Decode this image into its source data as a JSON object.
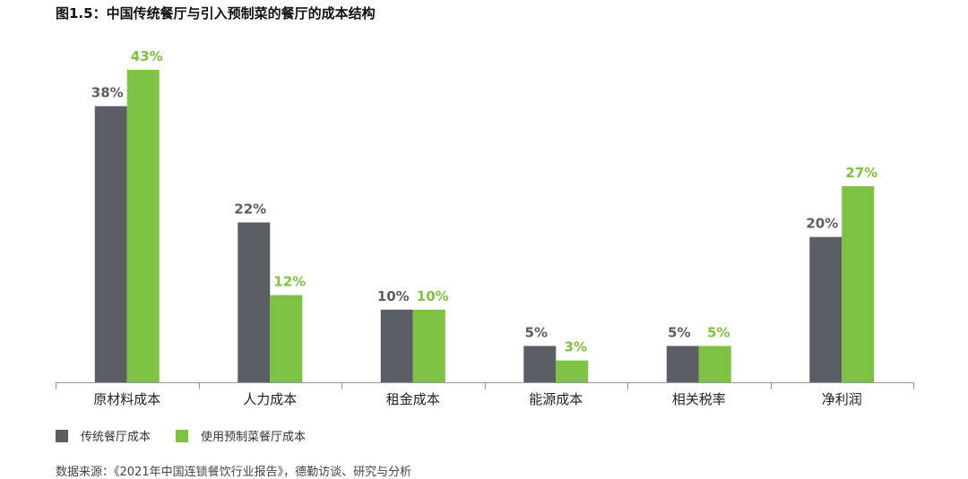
{
  "chart_data": {
    "type": "bar",
    "title": "图1.5：中国传统餐厅与引入预制菜的餐厅的成本结构",
    "categories": [
      "原材料成本",
      "人力成本",
      "租金成本",
      "能源成本",
      "相关税率",
      "净利润"
    ],
    "series": [
      {
        "name": "传统餐厅成本",
        "values": [
          38,
          22,
          10,
          5,
          5,
          20
        ],
        "labels": [
          "38%",
          "22%",
          "10%",
          "5%",
          "5%",
          "20%"
        ],
        "color": "#5c5e65",
        "label_color": "#5c5e65"
      },
      {
        "name": "使用预制菜餐厅成本",
        "values": [
          43,
          12,
          10,
          3,
          5,
          27
        ],
        "labels": [
          "43%",
          "12%",
          "10%",
          "3%",
          "5%",
          "27%"
        ],
        "color": "#7dc242",
        "label_color": "#7dc242"
      }
    ],
    "ylim": [
      0,
      45
    ],
    "legend_position": "bottom-left",
    "grid": false
  },
  "source": "数据来源：《2021年中国连锁餐饮行业报告》，德勤访谈、研究与分析"
}
